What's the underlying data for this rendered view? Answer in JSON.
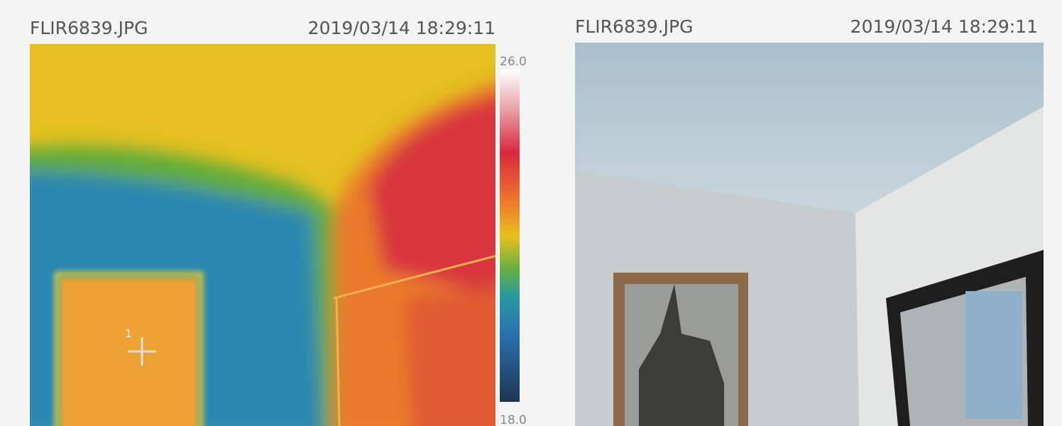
{
  "thermal": {
    "filename": "FLIR6839.JPG",
    "timestamp": "2019/03/14 18:29:11",
    "scale_max": "26.0",
    "scale_min": "18.0",
    "spot_label": "1"
  },
  "photo": {
    "filename": "FLIR6839.JPG",
    "timestamp": "2019/03/14 18:29:11"
  }
}
